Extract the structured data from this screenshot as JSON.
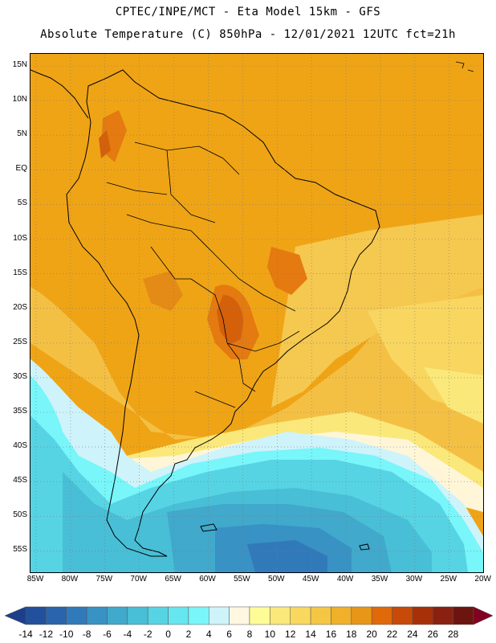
{
  "header": {
    "line1": "CPTEC/INPE/MCT -  Eta Model 15km - GFS",
    "line2": "Absolute Temperature (C) 850hPa - 12/01/2021 12UTC fct=21h"
  },
  "map": {
    "lat_labels": [
      "15N",
      "10N",
      "5N",
      "EQ",
      "5S",
      "10S",
      "15S",
      "20S",
      "25S",
      "30S",
      "35S",
      "40S",
      "45S",
      "50S",
      "55S"
    ],
    "lon_labels": [
      "85W",
      "80W",
      "75W",
      "70W",
      "65W",
      "60W",
      "55W",
      "50W",
      "45W",
      "40W",
      "35W",
      "30W",
      "25W",
      "20W"
    ],
    "gridlines": true,
    "coastline_color": "#000000"
  },
  "colorbar": {
    "labels": [
      "-14",
      "-12",
      "-10",
      "-8",
      "-6",
      "-4",
      "-2",
      "0",
      "2",
      "4",
      "6",
      "8",
      "10",
      "12",
      "14",
      "16",
      "18",
      "20",
      "22",
      "24",
      "26",
      "28"
    ],
    "colors": [
      "#1c3f8c",
      "#22509c",
      "#2a64ac",
      "#317aba",
      "#3892c4",
      "#40a9cc",
      "#48bfd6",
      "#56d4e4",
      "#66e6ee",
      "#78f6fa",
      "#cff3fa",
      "#fff7e0",
      "#fefc96",
      "#fae87a",
      "#f8d85e",
      "#f4c644",
      "#f0b02a",
      "#e89618",
      "#e06a0a",
      "#c84a08",
      "#a83008",
      "#8a2010",
      "#6c1410",
      "#800020"
    ]
  }
}
